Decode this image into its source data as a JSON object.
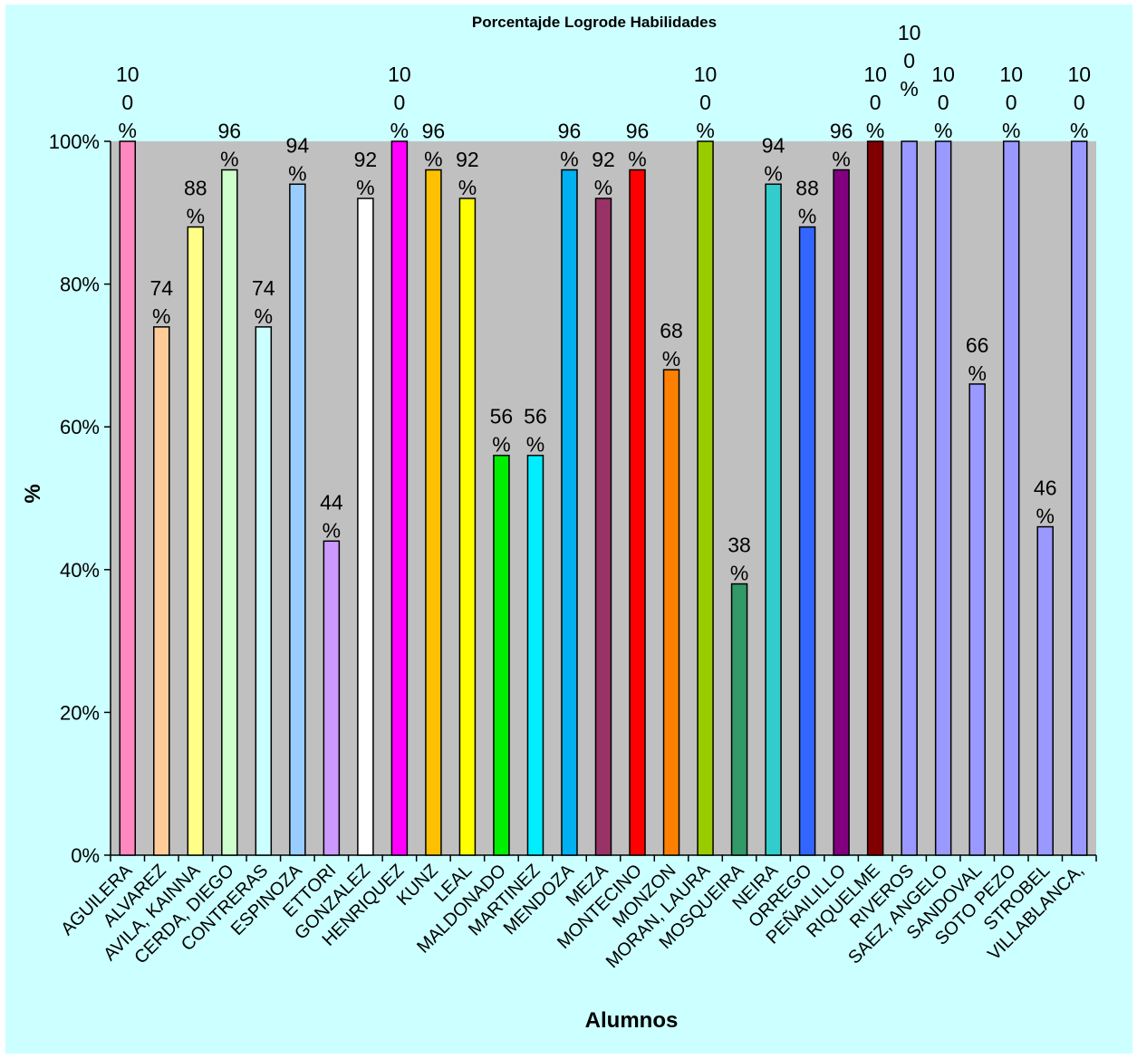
{
  "chart_data": {
    "type": "bar",
    "title": "Porcentajde  Logrode  Habilidades",
    "xlabel": "Alumnos",
    "ylabel": "%",
    "ylim": [
      0,
      1
    ],
    "yticks": [
      "0%",
      "20%",
      "40%",
      "60%",
      "80%",
      "100%"
    ],
    "grid": false,
    "legend": "none",
    "categories": [
      "AGUILERA",
      "ALVAREZ",
      "AVILA, KAINNA",
      "CERDA, DIEGO",
      "CONTRERAS",
      "ESPINOZA",
      "ETTORI",
      "GONZALEZ",
      "HENRIQUEZ",
      "KUNZ",
      "LEAL",
      "MALDONADO",
      "MARTINEZ",
      "MENDOZA",
      "MEZA",
      "MONTECINO",
      "MONZON",
      "MORAN, LAURA",
      "MOSQUEIRA",
      "NEIRA",
      "ORREGO",
      "PEÑAILILLO",
      "RIQUELME",
      "RIVEROS",
      "SAEZ, ANGELO",
      "SANDOVAL",
      "SOTO PEZO",
      "STROBEL",
      "VILLABLANCA,"
    ],
    "values": [
      1.0,
      0.74,
      0.88,
      0.96,
      0.74,
      0.94,
      0.44,
      0.92,
      1.0,
      0.96,
      0.92,
      0.56,
      0.56,
      0.96,
      0.92,
      0.96,
      0.68,
      1.0,
      0.38,
      0.94,
      0.88,
      0.96,
      1.0,
      1.0,
      1.0,
      0.66,
      1.0,
      0.46,
      1.0
    ],
    "data_labels": [
      [
        "10",
        "0",
        "%"
      ],
      [
        "74",
        "%"
      ],
      [
        "88",
        "%"
      ],
      [
        "96",
        "%"
      ],
      [
        "74",
        "%"
      ],
      [
        "94",
        "%"
      ],
      [
        "44",
        "%"
      ],
      [
        "92",
        "%"
      ],
      [
        "10",
        "0",
        "%"
      ],
      [
        "96",
        "%"
      ],
      [
        "92",
        "%"
      ],
      [
        "56",
        "%"
      ],
      [
        "56",
        "%"
      ],
      [
        "96",
        "%"
      ],
      [
        "92",
        "%"
      ],
      [
        "96",
        "%"
      ],
      [
        "68",
        "%"
      ],
      [
        "10",
        "0",
        "%"
      ],
      [
        "38",
        "%"
      ],
      [
        "94",
        "%"
      ],
      [
        "88",
        "%"
      ],
      [
        "96",
        "%"
      ],
      [
        "10",
        "0",
        "%"
      ],
      [
        "10",
        "0",
        "%"
      ],
      [
        "10",
        "0",
        "%"
      ],
      [
        "66",
        "%"
      ],
      [
        "10",
        "0",
        "%"
      ],
      [
        "46",
        "%"
      ],
      [
        "10",
        "0",
        "%"
      ]
    ],
    "colors": [
      "#ff88c0",
      "#ffcc99",
      "#ffff88",
      "#ccffcc",
      "#ccffff",
      "#99ccff",
      "#cc99ff",
      "#ffffff",
      "#ff00ff",
      "#ffc000",
      "#ffff00",
      "#00ee00",
      "#00eeff",
      "#00b0f0",
      "#993366",
      "#ff0000",
      "#ff8000",
      "#99cc00",
      "#339966",
      "#33cccc",
      "#3366ff",
      "#800080",
      "#800000",
      "#9999ff",
      "#9999ff",
      "#9999ff",
      "#9999ff",
      "#9999ff",
      "#9999ff"
    ],
    "plot_background": "#c0c0c0",
    "page_background": "#ccffff"
  }
}
